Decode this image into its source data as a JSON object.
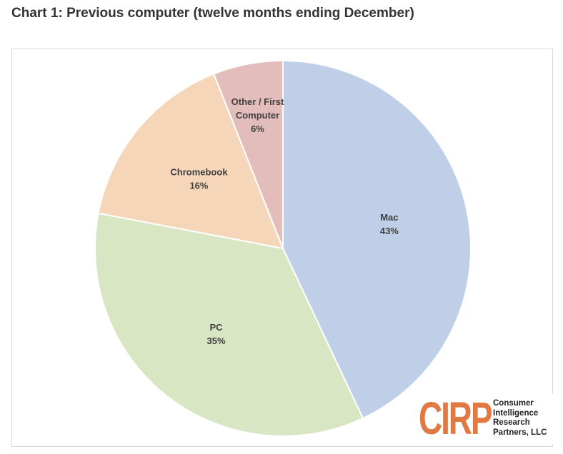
{
  "title": "Chart 1: Previous computer (twelve months ending December)",
  "chart_data": {
    "type": "pie",
    "title": "Chart 1: Previous computer (twelve months ending December)",
    "start_angle_deg": 0,
    "direction": "clockwise",
    "slices": [
      {
        "key": "mac",
        "label": "Mac",
        "value": 43,
        "value_label": "43%",
        "color": "#bfcfe8"
      },
      {
        "key": "pc",
        "label": "PC",
        "value": 35,
        "value_label": "35%",
        "color": "#d9e6c3"
      },
      {
        "key": "chromebook",
        "label": "Chromebook",
        "value": 16,
        "value_label": "16%",
        "color": "#f6d6b8"
      },
      {
        "key": "other",
        "label_lines": [
          "Other / First",
          "Computer"
        ],
        "value": 6,
        "value_label": "6%",
        "color": "#e3bcbc"
      }
    ]
  },
  "logo": {
    "mark": "CIRP",
    "mark_color": "#e07a42",
    "lines": [
      "Consumer",
      "Intelligence",
      "Research",
      "Partners, LLC"
    ]
  }
}
